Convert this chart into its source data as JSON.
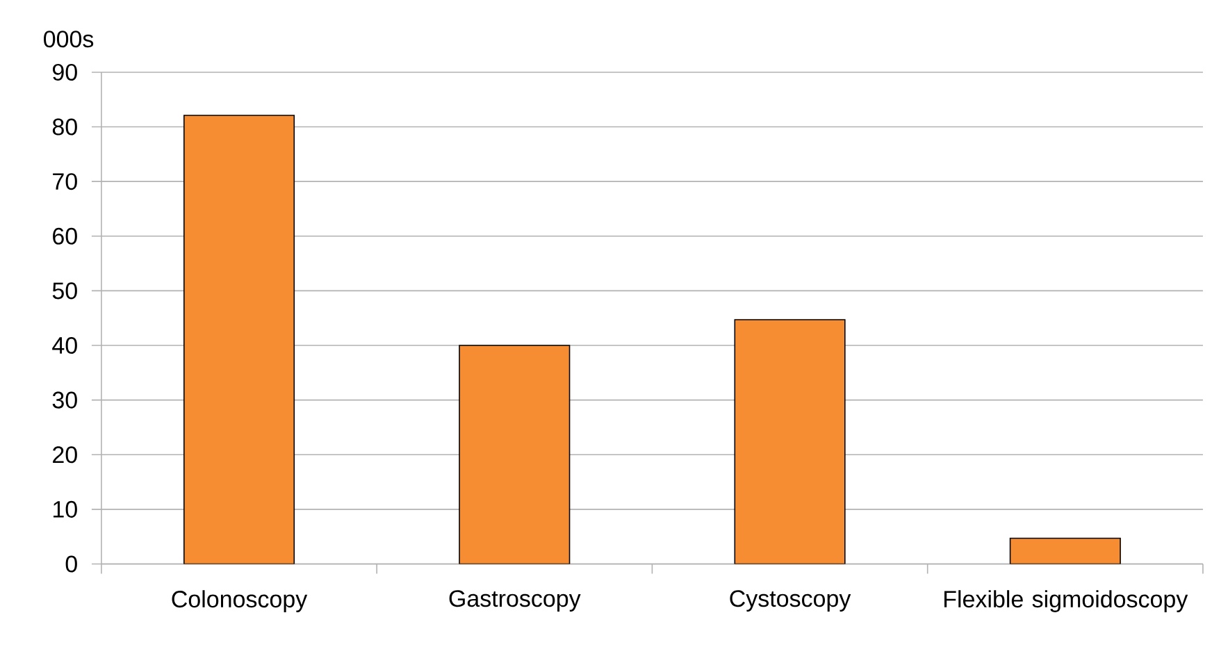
{
  "chart_data": {
    "type": "bar",
    "ylabel": "000s",
    "categories": [
      "Colonoscopy",
      "Gastroscopy",
      "Cystoscopy",
      "Flexible sigmoidoscopy"
    ],
    "values": [
      82.1,
      40.0,
      44.7,
      4.7
    ],
    "color": "#f68d33",
    "ylim": [
      0,
      90
    ],
    "yticks": [
      0,
      10,
      20,
      30,
      40,
      50,
      60,
      70,
      80,
      90
    ],
    "grid": "y"
  }
}
